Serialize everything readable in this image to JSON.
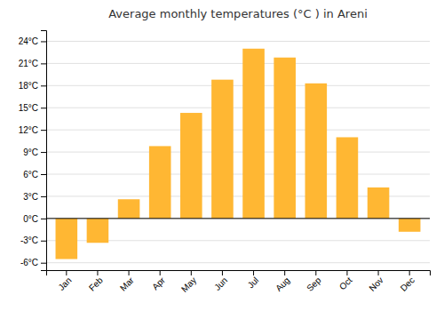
{
  "chart_data": {
    "type": "bar",
    "title": "Average monthly temperatures (°C ) in Areni",
    "categories": [
      "Jan",
      "Feb",
      "Mar",
      "Apr",
      "May",
      "Jun",
      "Jul",
      "Aug",
      "Sep",
      "Oct",
      "Nov",
      "Dec"
    ],
    "values": [
      -5.5,
      -3.3,
      2.6,
      9.8,
      14.3,
      18.8,
      23.0,
      21.8,
      18.3,
      11.0,
      4.2,
      -1.8
    ],
    "color": "#FFB733",
    "ylim": [
      -7,
      25.5
    ],
    "yticks": [
      {
        "value": -6,
        "label": "-6°C"
      },
      {
        "value": -3,
        "label": "-3°C"
      },
      {
        "value": 0,
        "label": "0°C"
      },
      {
        "value": 3,
        "label": "3°C"
      },
      {
        "value": 6,
        "label": "6°C"
      },
      {
        "value": 9,
        "label": "9°C"
      },
      {
        "value": 12,
        "label": "12°C"
      },
      {
        "value": 15,
        "label": "15°C"
      },
      {
        "value": 18,
        "label": "18°C"
      },
      {
        "value": 21,
        "label": "21°C"
      },
      {
        "value": 24,
        "label": "24°C"
      }
    ],
    "grid": true
  }
}
